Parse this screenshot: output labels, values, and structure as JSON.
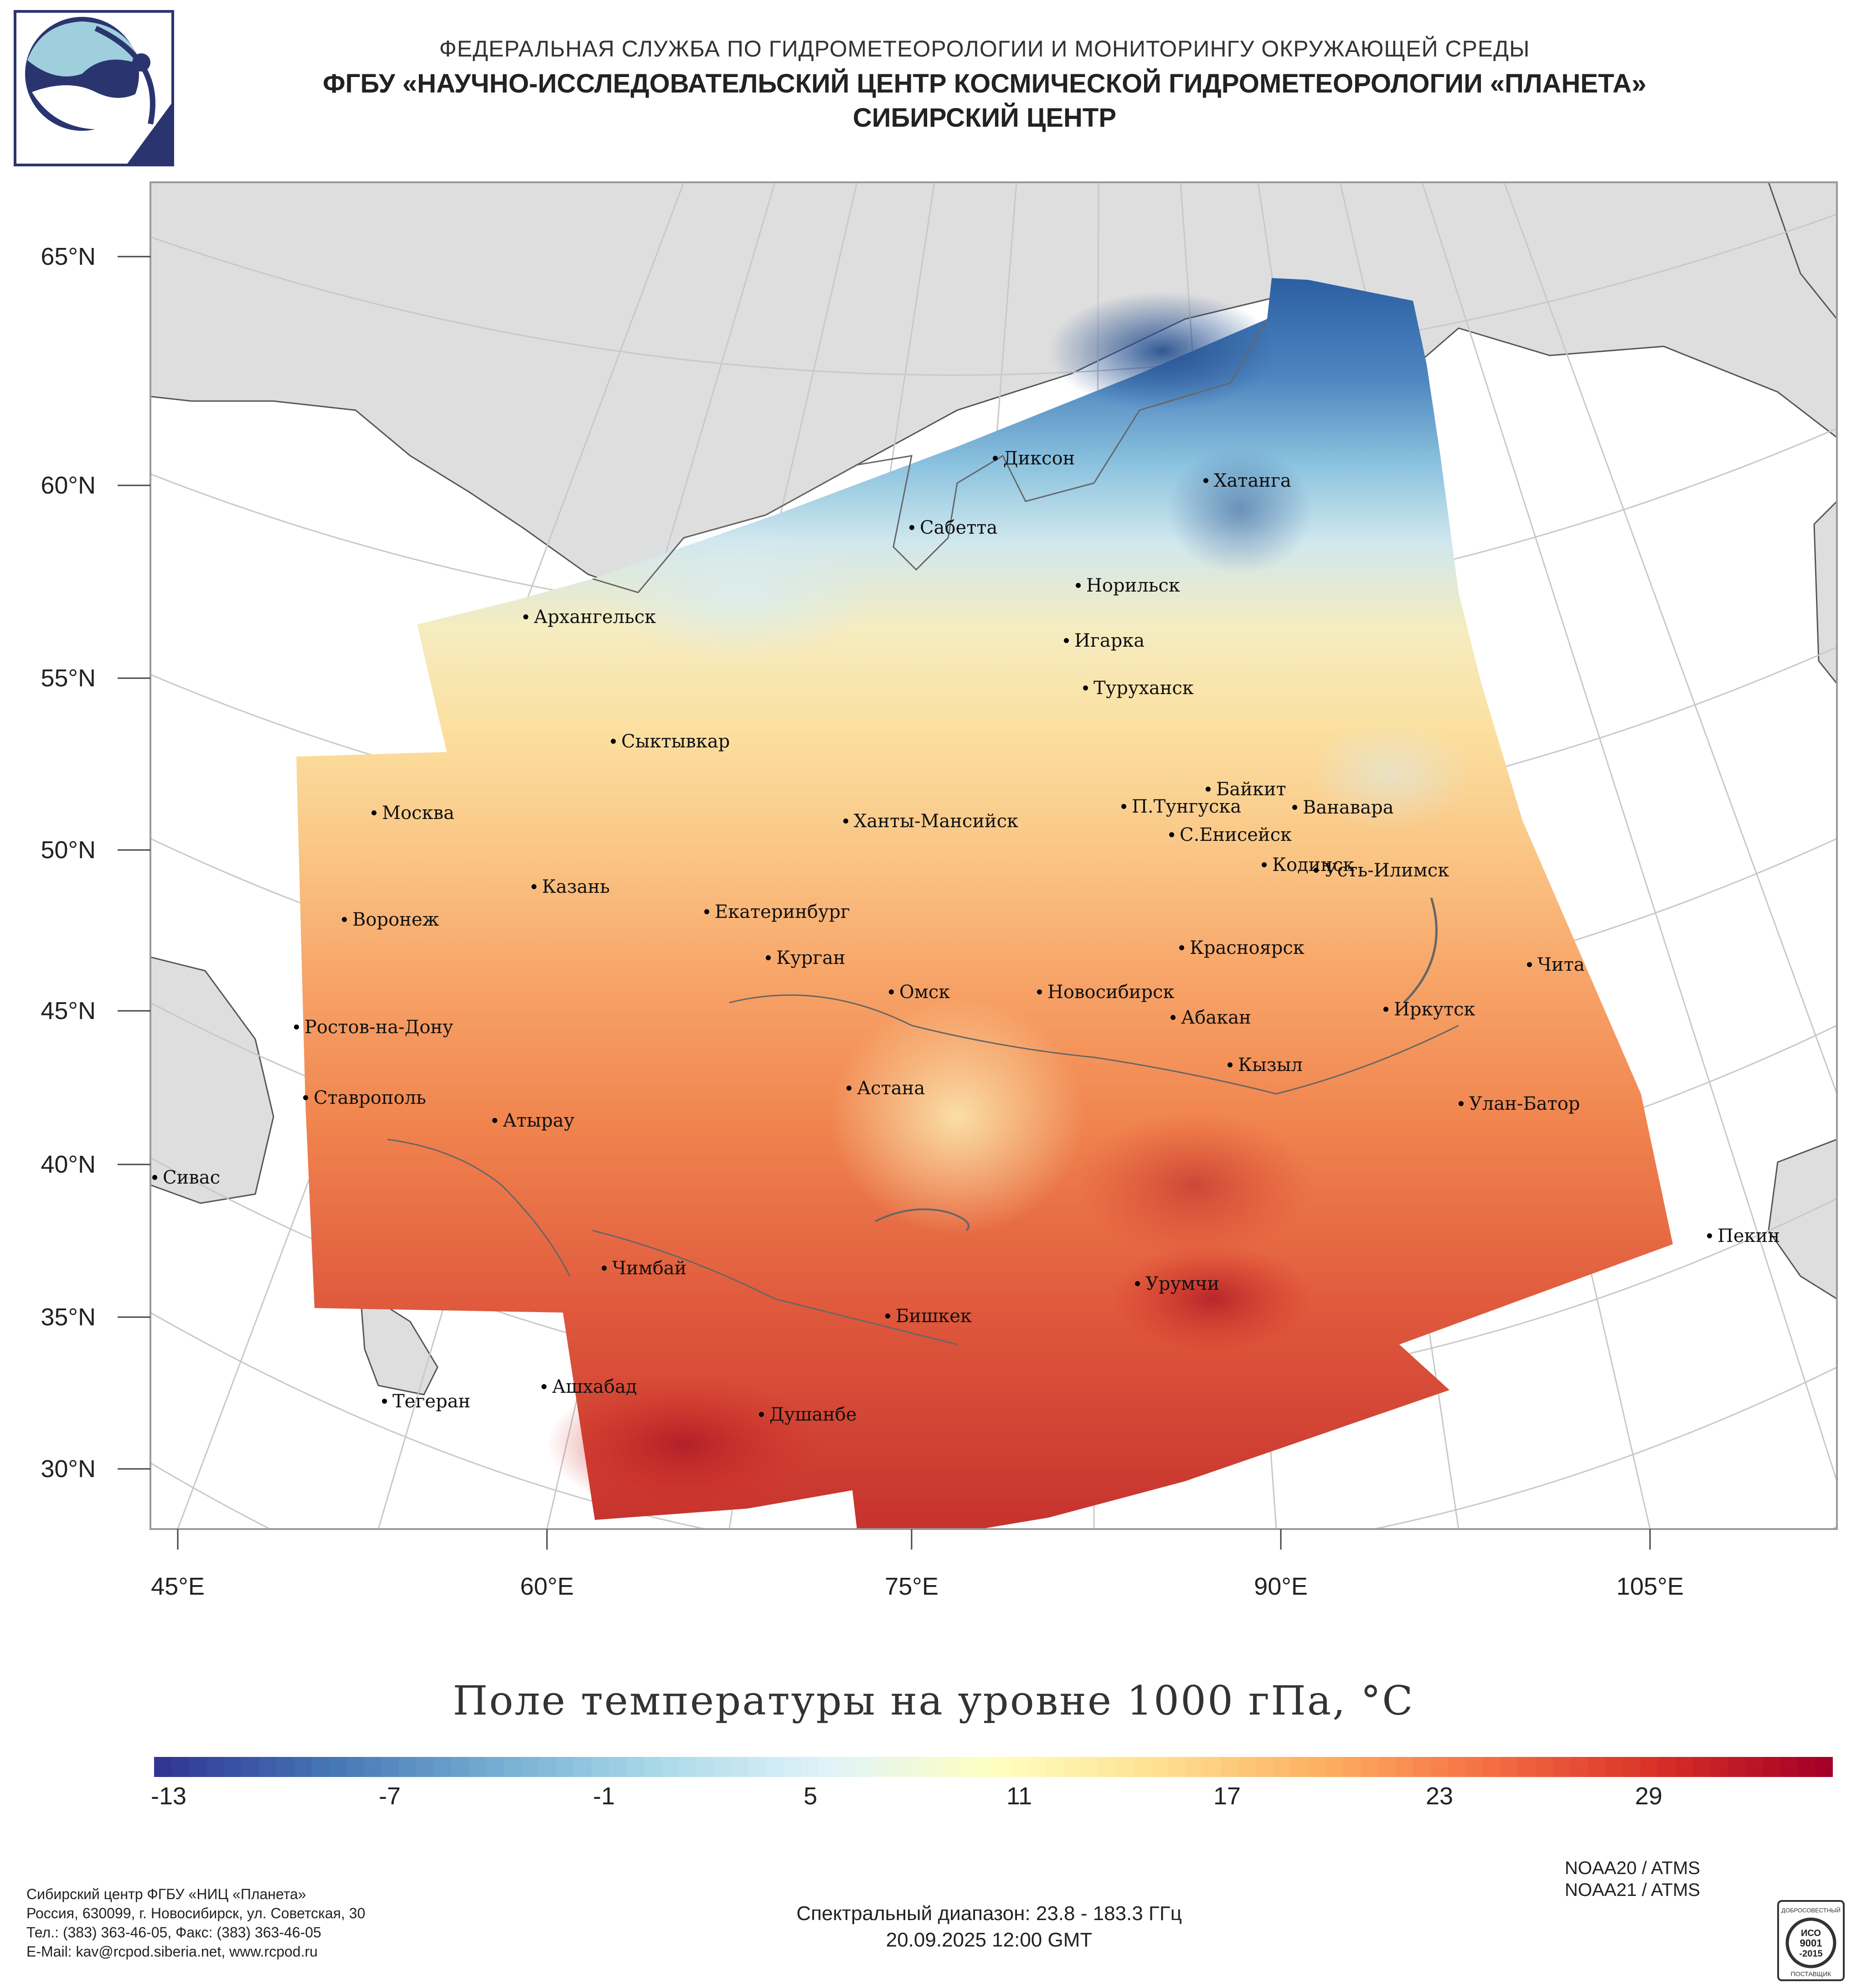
{
  "header": {
    "line1": "ФЕДЕРАЛЬНАЯ СЛУЖБА ПО ГИДРОМЕТЕОРОЛОГИИ И МОНИТОРИНГУ ОКРУЖАЮЩЕЙ СРЕДЫ",
    "line2": "ФГБУ «НАУЧНО-ИССЛЕДОВАТЕЛЬСКИЙ ЦЕНТР КОСМИЧЕСКОЙ ГИДРОМЕТЕОРОЛОГИИ «ПЛАНЕТА»",
    "line3": "СИБИРСКИЙ ЦЕНТР"
  },
  "map": {
    "lat_labels": [
      "65°N",
      "60°N",
      "55°N",
      "50°N",
      "45°N",
      "40°N",
      "35°N",
      "30°N"
    ],
    "lon_labels": [
      "45°E",
      "60°E",
      "75°E",
      "90°E",
      "105°E"
    ],
    "cities": [
      "Диксон",
      "Хатанга",
      "Сабетта",
      "Норильск",
      "Архангельск",
      "Игарка",
      "Туруханск",
      "Сыктывкар",
      "Байкит",
      "Москва",
      "П.Тунгуска",
      "Ванавара",
      "Ханты-Мансийск",
      "С.Енисейск",
      "Кодинск",
      "Усть-Илимск",
      "Казань",
      "Екатеринбург",
      "Воронеж",
      "Красноярск",
      "Курган",
      "Чита",
      "Омск",
      "Новосибирск",
      "Иркутск",
      "Абакан",
      "Ростов-на-Дону",
      "Кызыл",
      "Астана",
      "Ставрополь",
      "Улан-Батор",
      "Атырау",
      "Сивас",
      "Пекин",
      "Чимбай",
      "Урумчи",
      "Бишкек",
      "Ашхабад",
      "Тегеран",
      "Душанбе"
    ]
  },
  "colorbar": {
    "title": "Поле температуры на уровне 1000 гПа, °C",
    "ticks": [
      "-13",
      "-7",
      "-1",
      "5",
      "11",
      "17",
      "23",
      "29"
    ],
    "min": -15,
    "max": 33,
    "colors": [
      "#313695",
      "#4575b4",
      "#74add1",
      "#abd9e9",
      "#e0f3f8",
      "#ffffbf",
      "#fee090",
      "#fdae61",
      "#f46d43",
      "#d73027",
      "#a50026"
    ]
  },
  "footer": {
    "left": [
      "Сибирский центр ФГБУ «НИЦ «Планета»",
      "Россия, 630099, г. Новосибирск, ул. Советская, 30",
      "Тел.: (383) 363-46-05, Факс: (383) 363-46-05",
      "E-Mail: kav@rcpod.siberia.net, www.rcpod.ru"
    ],
    "spectral": "Спектральный диапазон: 23.8 - 183.3 ГГц",
    "datetime": "20.09.2025 12:00 GMT",
    "satellites": [
      "NOAA20 / ATMS",
      "NOAA21 / ATMS"
    ],
    "iso": [
      "ДОБРОСОВЕСТНЫЙ",
      "ИСО",
      "9001",
      "-2015",
      "ПОСТАВЩИК"
    ]
  }
}
